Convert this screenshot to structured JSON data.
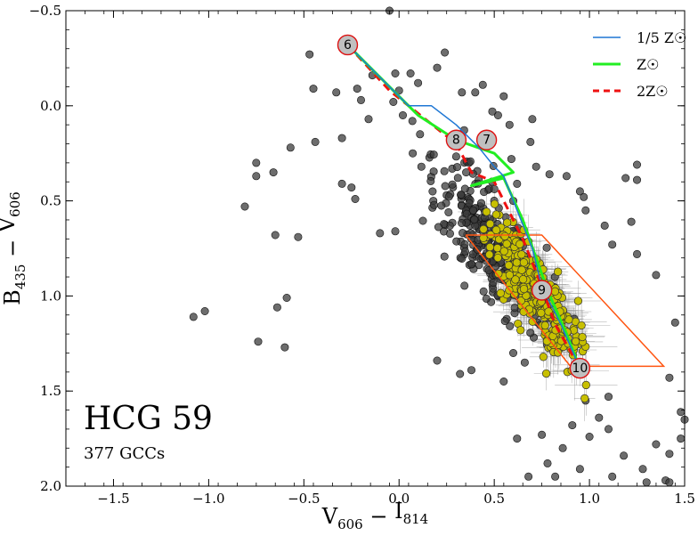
{
  "chart_data": {
    "type": "scatter",
    "title": "HCG 59",
    "subtitle": "377 GCCs",
    "xlabel": "V606 − I814",
    "ylabel": "B435 − V606",
    "xlim": [
      -1.75,
      1.5
    ],
    "ylim": [
      2.0,
      -0.5
    ],
    "y_inverted": true,
    "x_ticks": [
      -1.5,
      -1.0,
      -0.5,
      0.0,
      0.5,
      1.0,
      1.5
    ],
    "x_tick_labels": [
      "−1.5",
      "−1.0",
      "−0.5",
      "0.0",
      "0.5",
      "1.0",
      "1.5"
    ],
    "y_ticks": [
      -0.5,
      0.0,
      0.5,
      1.0,
      1.5,
      2.0
    ],
    "y_tick_labels": [
      "−0.5",
      "0.0",
      "0.5",
      "1.0",
      "1.5",
      "2.0"
    ],
    "colors": {
      "all_sources": "#3c3c3c",
      "gcc": "#c8c000",
      "track_fifth": "#1f77d4",
      "track_solar": "#22ee22",
      "track_double": "#ee1111",
      "selection_box": "#ff5511",
      "age_marker_fill": "#c0c0c0",
      "age_marker_edge": "#dd1111"
    },
    "legend": [
      {
        "series": "fifth",
        "label": "1/5 Z☉"
      },
      {
        "series": "solar",
        "label": "Z☉"
      },
      {
        "series": "double",
        "label": "2Z☉"
      }
    ],
    "selection_box": [
      [
        0.35,
        0.68
      ],
      [
        0.75,
        0.68
      ],
      [
        1.39,
        1.37
      ],
      [
        0.9,
        1.37
      ],
      [
        0.35,
        0.68
      ]
    ],
    "tracks": [
      {
        "name": "fifth",
        "style": "solid",
        "points": [
          [
            -0.27,
            -0.32
          ],
          [
            -0.1,
            -0.15
          ],
          [
            0.05,
            0.0
          ],
          [
            0.17,
            0.0
          ],
          [
            0.3,
            0.1
          ],
          [
            0.42,
            0.22
          ],
          [
            0.5,
            0.32
          ],
          [
            0.55,
            0.37
          ],
          [
            0.62,
            0.55
          ],
          [
            0.7,
            0.75
          ],
          [
            0.75,
            0.95
          ],
          [
            0.85,
            1.15
          ],
          [
            0.95,
            1.38
          ]
        ]
      },
      {
        "name": "solar",
        "style": "solid",
        "points": [
          [
            -0.27,
            -0.32
          ],
          [
            -0.05,
            -0.1
          ],
          [
            0.1,
            0.05
          ],
          [
            0.3,
            0.18
          ],
          [
            0.5,
            0.25
          ],
          [
            0.6,
            0.35
          ],
          [
            0.38,
            0.42
          ],
          [
            0.55,
            0.38
          ],
          [
            0.65,
            0.6
          ],
          [
            0.72,
            0.8
          ],
          [
            0.78,
            0.97
          ],
          [
            0.88,
            1.2
          ],
          [
            0.95,
            1.38
          ]
        ]
      },
      {
        "name": "double",
        "style": "dashed",
        "points": [
          [
            -0.27,
            -0.32
          ],
          [
            -0.05,
            -0.08
          ],
          [
            0.15,
            0.08
          ],
          [
            0.3,
            0.2
          ],
          [
            0.38,
            0.35
          ],
          [
            0.5,
            0.4
          ],
          [
            0.55,
            0.5
          ],
          [
            0.65,
            0.7
          ],
          [
            0.73,
            0.9
          ],
          [
            0.82,
            1.15
          ],
          [
            0.95,
            1.38
          ]
        ]
      }
    ],
    "age_markers": [
      {
        "label": "6",
        "x": -0.27,
        "y": -0.32
      },
      {
        "label": "8",
        "x": 0.3,
        "y": 0.18
      },
      {
        "label": "7",
        "x": 0.46,
        "y": 0.18
      },
      {
        "label": "9",
        "x": 0.75,
        "y": 0.97
      },
      {
        "label": "10",
        "x": 0.95,
        "y": 1.38
      }
    ],
    "gray_points_outliers": [
      [
        -1.08,
        1.11
      ],
      [
        -1.02,
        1.08
      ],
      [
        -0.81,
        0.53
      ],
      [
        -0.75,
        0.37
      ],
      [
        -0.74,
        1.24
      ],
      [
        -0.65,
        0.68
      ],
      [
        -0.64,
        1.06
      ],
      [
        -0.6,
        1.27
      ],
      [
        -0.59,
        1.01
      ],
      [
        -0.53,
        0.69
      ],
      [
        -0.66,
        0.35
      ],
      [
        -0.57,
        0.22
      ],
      [
        -0.47,
        -0.27
      ],
      [
        -0.45,
        -0.09
      ],
      [
        -0.3,
        0.41
      ],
      [
        -0.44,
        0.19
      ],
      [
        -0.22,
        -0.09
      ],
      [
        -0.33,
        -0.07
      ],
      [
        -0.3,
        0.17
      ],
      [
        -0.25,
        0.43
      ],
      [
        -0.23,
        0.49
      ],
      [
        -0.1,
        0.67
      ],
      [
        -0.02,
        0.66
      ],
      [
        -0.14,
        -0.16
      ],
      [
        -0.2,
        -0.03
      ],
      [
        -0.16,
        0.07
      ],
      [
        0.0,
        -0.08
      ],
      [
        -0.02,
        -0.17
      ],
      [
        0.06,
        -0.17
      ],
      [
        0.1,
        -0.12
      ],
      [
        0.02,
        0.05
      ],
      [
        0.07,
        0.08
      ],
      [
        0.11,
        0.15
      ],
      [
        0.2,
        -0.2
      ],
      [
        -0.03,
        -0.02
      ],
      [
        0.33,
        -0.07
      ],
      [
        0.4,
        -0.07
      ],
      [
        0.55,
        -0.05
      ],
      [
        0.58,
        0.1
      ],
      [
        0.7,
        0.07
      ],
      [
        0.52,
        0.05
      ],
      [
        0.69,
        0.19
      ],
      [
        0.72,
        0.32
      ],
      [
        0.79,
        0.36
      ],
      [
        0.88,
        0.37
      ],
      [
        0.95,
        0.45
      ],
      [
        0.97,
        0.48
      ],
      [
        0.6,
        0.5
      ],
      [
        0.62,
        0.41
      ],
      [
        1.25,
        0.31
      ],
      [
        1.25,
        0.39
      ],
      [
        0.98,
        0.55
      ],
      [
        1.08,
        0.63
      ],
      [
        1.12,
        0.73
      ],
      [
        1.22,
        0.61
      ],
      [
        1.25,
        0.78
      ],
      [
        1.35,
        0.89
      ],
      [
        1.45,
        1.14
      ],
      [
        1.42,
        1.43
      ],
      [
        1.48,
        1.61
      ],
      [
        1.5,
        1.65
      ],
      [
        1.48,
        1.75
      ],
      [
        1.42,
        1.83
      ],
      [
        1.35,
        1.78
      ],
      [
        1.4,
        1.97
      ],
      [
        1.42,
        1.98
      ],
      [
        1.28,
        1.91
      ],
      [
        1.3,
        1.98
      ],
      [
        1.12,
        1.95
      ],
      [
        1.18,
        1.84
      ],
      [
        1.1,
        1.7
      ],
      [
        1.05,
        1.64
      ],
      [
        1.0,
        1.74
      ],
      [
        0.91,
        1.68
      ],
      [
        0.95,
        1.91
      ],
      [
        0.82,
        1.95
      ],
      [
        0.78,
        1.88
      ],
      [
        0.86,
        1.8
      ],
      [
        0.75,
        1.73
      ],
      [
        0.62,
        1.75
      ],
      [
        0.68,
        1.95
      ],
      [
        0.98,
        1.55
      ],
      [
        1.1,
        1.53
      ],
      [
        0.2,
        1.34
      ],
      [
        0.32,
        1.41
      ],
      [
        0.38,
        1.39
      ],
      [
        0.55,
        1.45
      ],
      [
        0.6,
        1.3
      ],
      [
        0.66,
        1.35
      ],
      [
        -0.75,
        0.3
      ],
      [
        0.44,
        -0.11
      ],
      [
        0.24,
        -0.28
      ],
      [
        0.49,
        0.03
      ],
      [
        0.59,
        0.28
      ],
      [
        0.18,
        0.5
      ],
      [
        0.42,
        0.65
      ],
      [
        0.25,
        0.47
      ],
      [
        -0.05,
        -0.5
      ],
      [
        0.26,
        0.56
      ],
      [
        1.19,
        0.38
      ]
    ],
    "gray_points_cluster": {
      "count": 280,
      "center": [
        0.47,
        0.72
      ],
      "spread": [
        0.33,
        0.62
      ],
      "trend_slope": 1.25
    },
    "gcc_points": {
      "count": 377,
      "center": [
        0.72,
        0.98
      ],
      "spread": [
        0.28,
        0.48
      ],
      "trend_slope": 1.55
    }
  }
}
